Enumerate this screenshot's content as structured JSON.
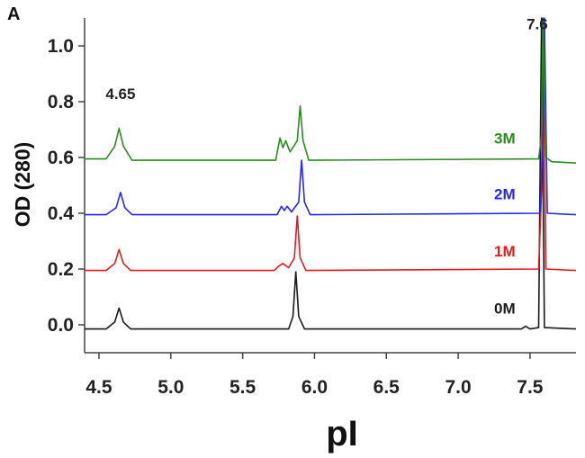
{
  "panel_label": "A",
  "colors": {
    "0M": "#1a1a1a",
    "1M": "#e8191c",
    "2M": "#2727f5",
    "3M": "#2a8c1e",
    "axis": "#444444"
  },
  "chart_data": {
    "type": "line",
    "title": "",
    "xlabel": "pI",
    "ylabel": "OD (280)",
    "xlim": [
      4.4,
      7.82
    ],
    "ylim": [
      -0.1,
      1.1
    ],
    "xticks": [
      4.5,
      5.0,
      5.5,
      6.0,
      6.5,
      7.0,
      7.5
    ],
    "xtick_labels": [
      "4.5",
      "5.0",
      "5.5",
      "6.0",
      "6.5",
      "7.0",
      "7.5"
    ],
    "yticks": [
      0.0,
      0.2,
      0.4,
      0.6,
      0.8,
      1.0
    ],
    "ytick_labels": [
      "0.0",
      "0.2",
      "0.4",
      "0.6",
      "0.8",
      "1.0"
    ],
    "grid": false,
    "legend": "none",
    "annotations": [
      {
        "text": "4.65",
        "x": 4.65,
        "y": 0.81
      },
      {
        "text": "7.6",
        "x": 7.55,
        "y": 1.06
      }
    ],
    "series": [
      {
        "name": "0M",
        "baseline": -0.015,
        "label_at": [
          7.1,
          0.06
        ],
        "points": [
          [
            4.4,
            -0.015
          ],
          [
            4.55,
            -0.015
          ],
          [
            4.61,
            0.01
          ],
          [
            4.64,
            0.06
          ],
          [
            4.67,
            0.01
          ],
          [
            4.72,
            -0.015
          ],
          [
            5.5,
            -0.015
          ],
          [
            5.82,
            -0.015
          ],
          [
            5.85,
            0.03
          ],
          [
            5.87,
            0.19
          ],
          [
            5.89,
            0.03
          ],
          [
            5.93,
            -0.015
          ],
          [
            7.44,
            -0.015
          ],
          [
            7.47,
            -0.005
          ],
          [
            7.5,
            -0.015
          ],
          [
            7.56,
            -0.01
          ],
          [
            7.58,
            1.1
          ],
          [
            7.6,
            -0.01
          ],
          [
            7.82,
            -0.015
          ]
        ]
      },
      {
        "name": "1M",
        "baseline": 0.195,
        "label_at": [
          7.1,
          0.265
        ],
        "points": [
          [
            4.4,
            0.195
          ],
          [
            4.55,
            0.195
          ],
          [
            4.61,
            0.22
          ],
          [
            4.64,
            0.27
          ],
          [
            4.67,
            0.22
          ],
          [
            4.72,
            0.195
          ],
          [
            5.72,
            0.195
          ],
          [
            5.75,
            0.21
          ],
          [
            5.78,
            0.22
          ],
          [
            5.82,
            0.205
          ],
          [
            5.86,
            0.24
          ],
          [
            5.88,
            0.39
          ],
          [
            5.9,
            0.24
          ],
          [
            5.94,
            0.195
          ],
          [
            7.56,
            0.2
          ],
          [
            7.58,
            0.48
          ],
          [
            7.59,
            1.1
          ],
          [
            7.61,
            0.2
          ],
          [
            7.82,
            0.195
          ]
        ]
      },
      {
        "name": "2M",
        "baseline": 0.395,
        "label_at": [
          7.1,
          0.47
        ],
        "points": [
          [
            4.4,
            0.395
          ],
          [
            4.55,
            0.395
          ],
          [
            4.62,
            0.42
          ],
          [
            4.65,
            0.475
          ],
          [
            4.68,
            0.42
          ],
          [
            4.73,
            0.395
          ],
          [
            5.74,
            0.395
          ],
          [
            5.77,
            0.425
          ],
          [
            5.79,
            0.41
          ],
          [
            5.81,
            0.425
          ],
          [
            5.84,
            0.405
          ],
          [
            5.89,
            0.44
          ],
          [
            5.91,
            0.59
          ],
          [
            5.93,
            0.44
          ],
          [
            5.97,
            0.395
          ],
          [
            7.57,
            0.4
          ],
          [
            7.59,
            0.66
          ],
          [
            7.6,
            1.1
          ],
          [
            7.62,
            0.4
          ],
          [
            7.82,
            0.395
          ]
        ]
      },
      {
        "name": "3M",
        "baseline": 0.59,
        "label_at": [
          7.1,
          0.67
        ],
        "points": [
          [
            4.4,
            0.595
          ],
          [
            4.55,
            0.595
          ],
          [
            4.61,
            0.64
          ],
          [
            4.64,
            0.705
          ],
          [
            4.67,
            0.64
          ],
          [
            4.73,
            0.59
          ],
          [
            5.73,
            0.59
          ],
          [
            5.76,
            0.67
          ],
          [
            5.78,
            0.635
          ],
          [
            5.8,
            0.66
          ],
          [
            5.83,
            0.62
          ],
          [
            5.88,
            0.66
          ],
          [
            5.9,
            0.785
          ],
          [
            5.92,
            0.66
          ],
          [
            5.96,
            0.59
          ],
          [
            7.56,
            0.595
          ],
          [
            7.58,
            0.68
          ],
          [
            7.59,
            1.1
          ],
          [
            7.61,
            0.6
          ],
          [
            7.65,
            0.585
          ],
          [
            7.82,
            0.58
          ]
        ]
      }
    ]
  }
}
